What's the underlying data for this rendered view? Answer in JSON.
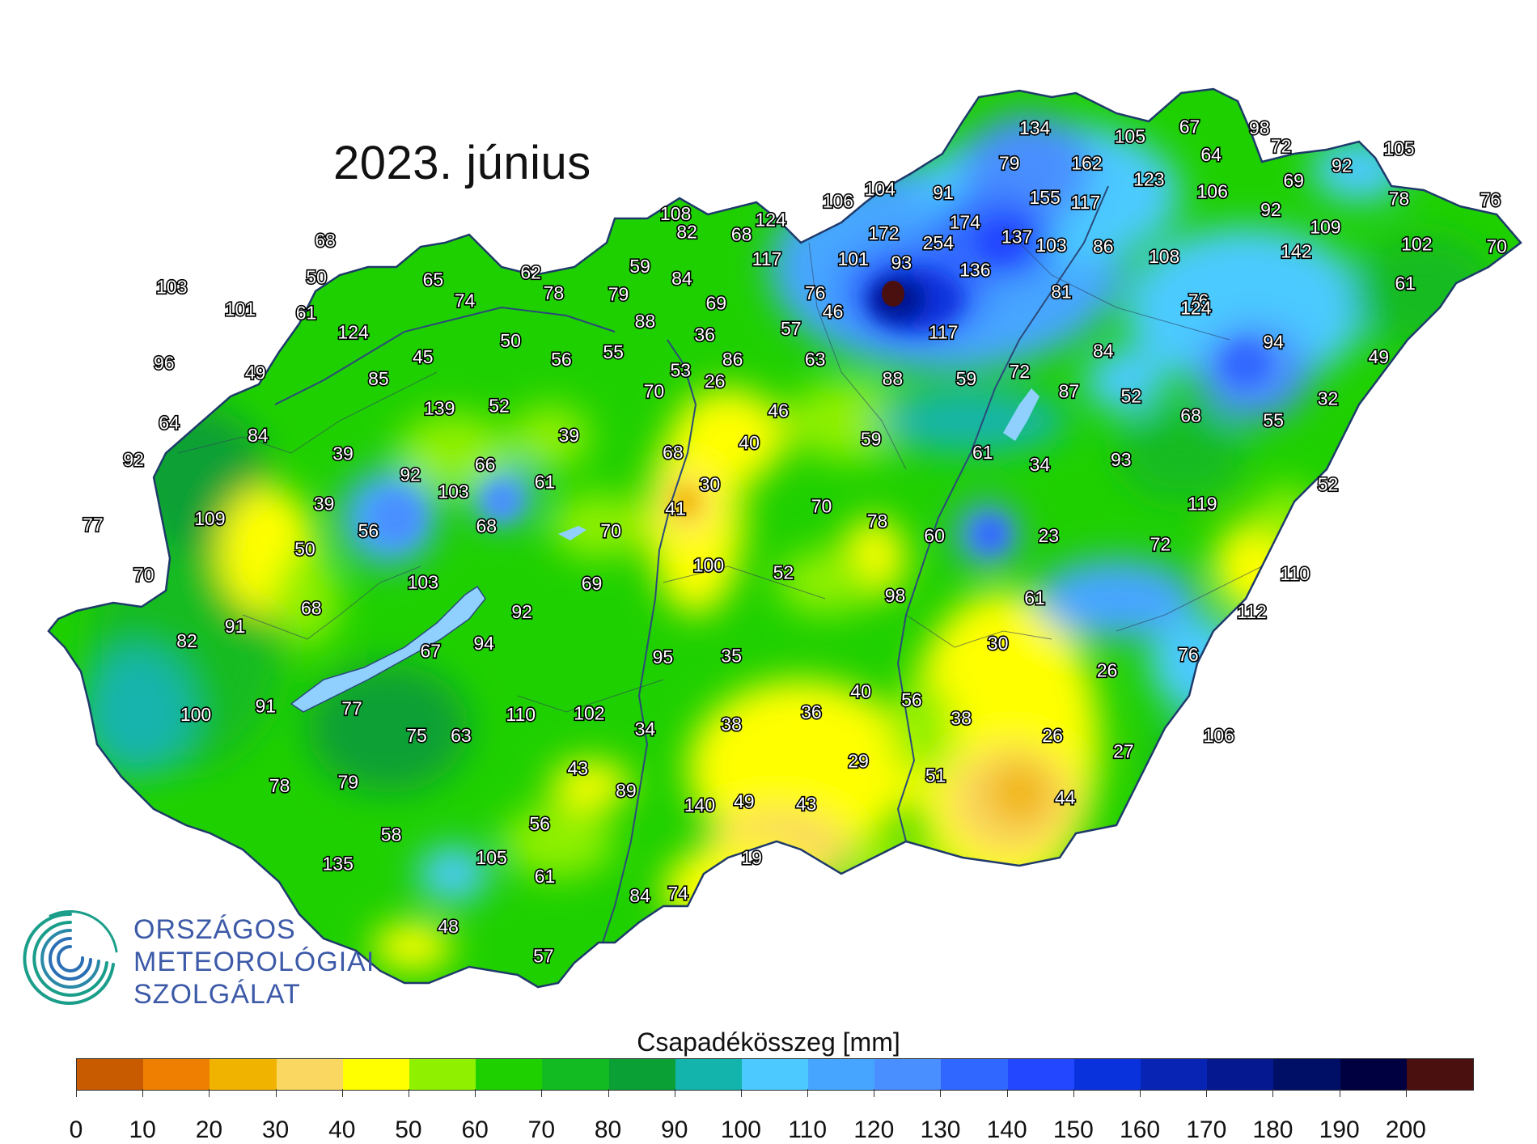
{
  "title": "2023. június",
  "logo": {
    "lines": [
      "ORSZÁGOS",
      "METEOROLÓGIAI",
      "SZOLGÁLAT"
    ],
    "colors": [
      "#1a9e8a",
      "#2b6fb5",
      "#3d5aa8"
    ]
  },
  "legend": {
    "title": "Csapadékösszeg [mm]",
    "ticks": [
      "0",
      "10",
      "20",
      "30",
      "40",
      "50",
      "60",
      "70",
      "80",
      "90",
      "100",
      "110",
      "120",
      "130",
      "140",
      "150",
      "160",
      "170",
      "180",
      "190",
      "200"
    ],
    "colors": [
      "#c85b00",
      "#ef7f00",
      "#f0b400",
      "#fad760",
      "#ffff00",
      "#8ff000",
      "#1fd000",
      "#12bb22",
      "#0aa035",
      "#13b4ac",
      "#4ccaff",
      "#46a6ff",
      "#4a8fff",
      "#3068ff",
      "#2346ff",
      "#0a32dc",
      "#0724b4",
      "#061890",
      "#000f66",
      "#000040",
      "#4a1010"
    ]
  },
  "stations": [
    {
      "label": "134",
      "lon": 19.77,
      "lat": 48.57
    },
    {
      "label": "105",
      "lon": 20.52,
      "lat": 48.5
    },
    {
      "label": "67",
      "lon": 20.99,
      "lat": 48.58
    },
    {
      "label": "98",
      "lon": 21.54,
      "lat": 48.57
    },
    {
      "label": "72",
      "lon": 21.71,
      "lat": 48.42
    },
    {
      "label": "105",
      "lon": 22.64,
      "lat": 48.4
    },
    {
      "label": "64",
      "lon": 21.16,
      "lat": 48.35
    },
    {
      "label": "92",
      "lon": 22.19,
      "lat": 48.26
    },
    {
      "label": "79",
      "lon": 19.57,
      "lat": 48.28
    },
    {
      "label": "162",
      "lon": 20.18,
      "lat": 48.28
    },
    {
      "label": "123",
      "lon": 20.67,
      "lat": 48.15
    },
    {
      "label": "69",
      "lon": 21.81,
      "lat": 48.14
    },
    {
      "label": "106",
      "lon": 21.17,
      "lat": 48.05
    },
    {
      "label": "104",
      "lon": 18.55,
      "lat": 48.07
    },
    {
      "label": "91",
      "lon": 19.05,
      "lat": 48.04
    },
    {
      "label": "155",
      "lon": 19.85,
      "lat": 48.0
    },
    {
      "label": "117",
      "lon": 20.17,
      "lat": 47.96
    },
    {
      "label": "106",
      "lon": 18.22,
      "lat": 47.97
    },
    {
      "label": "92",
      "lon": 21.63,
      "lat": 47.9
    },
    {
      "label": "78",
      "lon": 22.64,
      "lat": 47.99
    },
    {
      "label": "76",
      "lon": 23.36,
      "lat": 47.98
    },
    {
      "label": "124",
      "lon": 17.69,
      "lat": 47.82
    },
    {
      "label": "174",
      "lon": 19.22,
      "lat": 47.8
    },
    {
      "label": "108",
      "lon": 16.94,
      "lat": 47.87
    },
    {
      "label": "109",
      "lon": 22.06,
      "lat": 47.76
    },
    {
      "label": "82",
      "lon": 17.03,
      "lat": 47.72
    },
    {
      "label": "68",
      "lon": 17.46,
      "lat": 47.7
    },
    {
      "label": "172",
      "lon": 18.58,
      "lat": 47.71
    },
    {
      "label": "137",
      "lon": 19.63,
      "lat": 47.68
    },
    {
      "label": "254",
      "lon": 19.01,
      "lat": 47.63
    },
    {
      "label": "102",
      "lon": 22.78,
      "lat": 47.62
    },
    {
      "label": "70",
      "lon": 23.41,
      "lat": 47.6
    },
    {
      "label": "103",
      "lon": 19.9,
      "lat": 47.61
    },
    {
      "label": "86",
      "lon": 20.31,
      "lat": 47.6
    },
    {
      "label": "142",
      "lon": 21.83,
      "lat": 47.56
    },
    {
      "label": "68",
      "lon": 14.18,
      "lat": 47.65
    },
    {
      "label": "108",
      "lon": 20.79,
      "lat": 47.52
    },
    {
      "label": "117",
      "lon": 17.66,
      "lat": 47.5
    },
    {
      "label": "101",
      "lon": 18.34,
      "lat": 47.5
    },
    {
      "label": "93",
      "lon": 18.72,
      "lat": 47.47
    },
    {
      "label": "136",
      "lon": 19.3,
      "lat": 47.41
    },
    {
      "label": "59",
      "lon": 16.66,
      "lat": 47.44
    },
    {
      "label": "62",
      "lon": 15.8,
      "lat": 47.39
    },
    {
      "label": "84",
      "lon": 16.99,
      "lat": 47.34
    },
    {
      "label": "50",
      "lon": 14.11,
      "lat": 47.35
    },
    {
      "label": "65",
      "lon": 15.03,
      "lat": 47.33
    },
    {
      "label": "103",
      "lon": 12.97,
      "lat": 47.27
    },
    {
      "label": "61",
      "lon": 22.69,
      "lat": 47.3
    },
    {
      "label": "81",
      "lon": 19.98,
      "lat": 47.23
    },
    {
      "label": "76",
      "lon": 21.06,
      "lat": 47.16
    },
    {
      "label": "78",
      "lon": 15.98,
      "lat": 47.22
    },
    {
      "label": "79",
      "lon": 16.49,
      "lat": 47.21
    },
    {
      "label": "76",
      "lon": 18.04,
      "lat": 47.22
    },
    {
      "label": "124",
      "lon": 21.04,
      "lat": 47.1
    },
    {
      "label": "74",
      "lon": 15.28,
      "lat": 47.16
    },
    {
      "label": "69",
      "lon": 17.26,
      "lat": 47.14
    },
    {
      "label": "101",
      "lon": 13.51,
      "lat": 47.09
    },
    {
      "label": "61",
      "lon": 14.03,
      "lat": 47.06
    },
    {
      "label": "46",
      "lon": 18.18,
      "lat": 47.07
    },
    {
      "label": "88",
      "lon": 16.7,
      "lat": 46.99
    },
    {
      "label": "57",
      "lon": 17.85,
      "lat": 46.93
    },
    {
      "label": "36",
      "lon": 17.17,
      "lat": 46.88
    },
    {
      "label": "117",
      "lon": 19.05,
      "lat": 46.9
    },
    {
      "label": "94",
      "lon": 21.65,
      "lat": 46.82
    },
    {
      "label": "124",
      "lon": 14.4,
      "lat": 46.9
    },
    {
      "label": "50",
      "lon": 15.64,
      "lat": 46.83
    },
    {
      "label": "84",
      "lon": 20.31,
      "lat": 46.75
    },
    {
      "label": "55",
      "lon": 16.45,
      "lat": 46.74
    },
    {
      "label": "45",
      "lon": 14.95,
      "lat": 46.7
    },
    {
      "label": "56",
      "lon": 16.04,
      "lat": 46.68
    },
    {
      "label": "86",
      "lon": 17.39,
      "lat": 46.68
    },
    {
      "label": "63",
      "lon": 18.04,
      "lat": 46.68
    },
    {
      "label": "49",
      "lon": 22.48,
      "lat": 46.7
    },
    {
      "label": "96",
      "lon": 12.91,
      "lat": 46.65
    },
    {
      "label": "53",
      "lon": 16.98,
      "lat": 46.59
    },
    {
      "label": "72",
      "lon": 19.65,
      "lat": 46.58
    },
    {
      "label": "49",
      "lon": 13.63,
      "lat": 46.57
    },
    {
      "label": "85",
      "lon": 14.6,
      "lat": 46.52
    },
    {
      "label": "88",
      "lon": 18.65,
      "lat": 46.52
    },
    {
      "label": "59",
      "lon": 19.23,
      "lat": 46.52
    },
    {
      "label": "26",
      "lon": 17.25,
      "lat": 46.5
    },
    {
      "label": "70",
      "lon": 16.77,
      "lat": 46.42
    },
    {
      "label": "87",
      "lon": 20.04,
      "lat": 46.42
    },
    {
      "label": "52",
      "lon": 20.53,
      "lat": 46.38
    },
    {
      "label": "32",
      "lon": 22.08,
      "lat": 46.36
    },
    {
      "label": "139",
      "lon": 15.08,
      "lat": 46.28
    },
    {
      "label": "52",
      "lon": 15.55,
      "lat": 46.3
    },
    {
      "label": "46",
      "lon": 17.75,
      "lat": 46.26
    },
    {
      "label": "68",
      "lon": 21.0,
      "lat": 46.22
    },
    {
      "label": "55",
      "lon": 21.65,
      "lat": 46.18
    },
    {
      "label": "64",
      "lon": 12.95,
      "lat": 46.16
    },
    {
      "label": "84",
      "lon": 13.65,
      "lat": 46.06
    },
    {
      "label": "39",
      "lon": 16.1,
      "lat": 46.06
    },
    {
      "label": "40",
      "lon": 17.52,
      "lat": 46.0
    },
    {
      "label": "59",
      "lon": 18.48,
      "lat": 46.03
    },
    {
      "label": "39",
      "lon": 14.32,
      "lat": 45.91
    },
    {
      "label": "61",
      "lon": 19.36,
      "lat": 45.92
    },
    {
      "label": "68",
      "lon": 16.92,
      "lat": 45.92
    },
    {
      "label": "92",
      "lon": 12.67,
      "lat": 45.86
    },
    {
      "label": "66",
      "lon": 15.44,
      "lat": 45.82
    },
    {
      "label": "34",
      "lon": 19.81,
      "lat": 45.82
    },
    {
      "label": "93",
      "lon": 20.45,
      "lat": 45.86
    },
    {
      "label": "92",
      "lon": 14.85,
      "lat": 45.74
    },
    {
      "label": "61",
      "lon": 15.91,
      "lat": 45.68
    },
    {
      "label": "30",
      "lon": 17.21,
      "lat": 45.66
    },
    {
      "label": "52",
      "lon": 22.08,
      "lat": 45.66
    },
    {
      "label": "103",
      "lon": 15.19,
      "lat": 45.6
    },
    {
      "label": "119",
      "lon": 21.09,
      "lat": 45.5
    },
    {
      "label": "39",
      "lon": 14.17,
      "lat": 45.5
    },
    {
      "label": "41",
      "lon": 16.94,
      "lat": 45.46
    },
    {
      "label": "70",
      "lon": 18.09,
      "lat": 45.48
    },
    {
      "label": "78",
      "lon": 18.53,
      "lat": 45.36
    },
    {
      "label": "77",
      "lon": 12.35,
      "lat": 45.33
    },
    {
      "label": "109",
      "lon": 13.27,
      "lat": 45.38
    },
    {
      "label": "68",
      "lon": 15.45,
      "lat": 45.32
    },
    {
      "label": "56",
      "lon": 14.52,
      "lat": 45.28
    },
    {
      "label": "70",
      "lon": 16.43,
      "lat": 45.28
    },
    {
      "label": "60",
      "lon": 18.98,
      "lat": 45.24
    },
    {
      "label": "23",
      "lon": 19.88,
      "lat": 45.24
    },
    {
      "label": "72",
      "lon": 20.76,
      "lat": 45.17
    },
    {
      "label": "50",
      "lon": 14.02,
      "lat": 45.13
    },
    {
      "label": "100",
      "lon": 17.2,
      "lat": 45.0
    },
    {
      "label": "52",
      "lon": 17.79,
      "lat": 44.94
    },
    {
      "label": "110",
      "lon": 21.82,
      "lat": 44.93
    },
    {
      "label": "70",
      "lon": 12.75,
      "lat": 44.92
    },
    {
      "label": "103",
      "lon": 14.95,
      "lat": 44.86
    },
    {
      "label": "69",
      "lon": 16.28,
      "lat": 44.85
    },
    {
      "label": "98",
      "lon": 18.67,
      "lat": 44.75
    },
    {
      "label": "61",
      "lon": 19.77,
      "lat": 44.73
    },
    {
      "label": "68",
      "lon": 14.07,
      "lat": 44.65
    },
    {
      "label": "92",
      "lon": 15.73,
      "lat": 44.62
    },
    {
      "label": "112",
      "lon": 21.48,
      "lat": 44.62
    },
    {
      "label": "91",
      "lon": 13.47,
      "lat": 44.5
    },
    {
      "label": "82",
      "lon": 13.09,
      "lat": 44.38
    },
    {
      "label": "67",
      "lon": 15.01,
      "lat": 44.3
    },
    {
      "label": "94",
      "lon": 15.43,
      "lat": 44.36
    },
    {
      "label": "30",
      "lon": 19.48,
      "lat": 44.36
    },
    {
      "label": "95",
      "lon": 16.84,
      "lat": 44.25
    },
    {
      "label": "35",
      "lon": 17.38,
      "lat": 44.26
    },
    {
      "label": "76",
      "lon": 20.98,
      "lat": 44.27
    },
    {
      "label": "26",
      "lon": 20.34,
      "lat": 44.14
    },
    {
      "label": "40",
      "lon": 18.4,
      "lat": 43.97
    },
    {
      "label": "56",
      "lon": 18.8,
      "lat": 43.9
    },
    {
      "label": "91",
      "lon": 13.71,
      "lat": 43.85
    },
    {
      "label": "100",
      "lon": 13.16,
      "lat": 43.78
    },
    {
      "label": "77",
      "lon": 14.39,
      "lat": 43.83
    },
    {
      "label": "110",
      "lon": 15.72,
      "lat": 43.78
    },
    {
      "label": "102",
      "lon": 16.26,
      "lat": 43.79
    },
    {
      "label": "36",
      "lon": 18.01,
      "lat": 43.8
    },
    {
      "label": "38",
      "lon": 19.19,
      "lat": 43.75
    },
    {
      "label": "38",
      "lon": 17.38,
      "lat": 43.7
    },
    {
      "label": "34",
      "lon": 16.7,
      "lat": 43.66
    },
    {
      "label": "75",
      "lon": 14.9,
      "lat": 43.61
    },
    {
      "label": "63",
      "lon": 15.25,
      "lat": 43.61
    },
    {
      "label": "26",
      "lon": 19.91,
      "lat": 43.61
    },
    {
      "label": "106",
      "lon": 21.22,
      "lat": 43.61
    },
    {
      "label": "27",
      "lon": 20.47,
      "lat": 43.48
    },
    {
      "label": "29",
      "lon": 18.38,
      "lat": 43.4
    },
    {
      "label": "43",
      "lon": 16.17,
      "lat": 43.34
    },
    {
      "label": "51",
      "lon": 18.99,
      "lat": 43.28
    },
    {
      "label": "78",
      "lon": 13.82,
      "lat": 43.2
    },
    {
      "label": "79",
      "lon": 14.36,
      "lat": 43.23
    },
    {
      "label": "89",
      "lon": 16.55,
      "lat": 43.16
    },
    {
      "label": "44",
      "lon": 20.01,
      "lat": 43.1
    },
    {
      "label": "49",
      "lon": 17.48,
      "lat": 43.07
    },
    {
      "label": "43",
      "lon": 17.97,
      "lat": 43.05
    },
    {
      "label": "140",
      "lon": 17.13,
      "lat": 43.04
    },
    {
      "label": "56",
      "lon": 15.87,
      "lat": 42.89
    },
    {
      "label": "58",
      "lon": 14.7,
      "lat": 42.8
    },
    {
      "label": "105",
      "lon": 15.49,
      "lat": 42.61
    },
    {
      "label": "19",
      "lon": 17.54,
      "lat": 42.61
    },
    {
      "label": "135",
      "lon": 14.28,
      "lat": 42.56
    },
    {
      "label": "61",
      "lon": 15.91,
      "lat": 42.46
    },
    {
      "label": "84",
      "lon": 16.66,
      "lat": 42.3
    },
    {
      "label": "74",
      "lon": 16.96,
      "lat": 42.32
    },
    {
      "label": "48",
      "lon": 15.15,
      "lat": 42.05
    },
    {
      "label": "57",
      "lon": 15.9,
      "lat": 41.81
    }
  ]
}
